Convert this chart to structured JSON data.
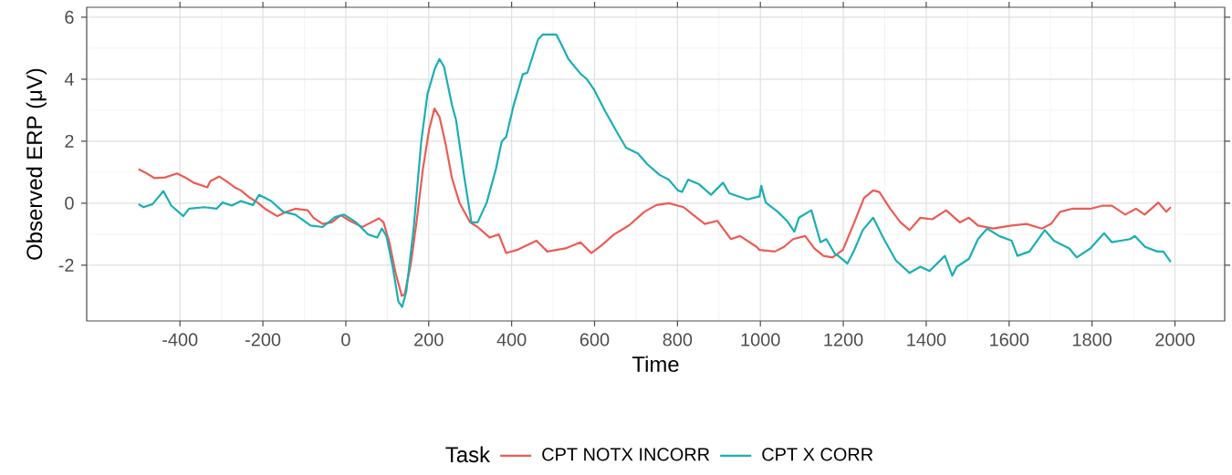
{
  "chart_data": {
    "type": "line",
    "xlabel": "Time",
    "ylabel": "Observed ERP (μV)",
    "legend_title": "Task",
    "xlim": [
      -625,
      2120
    ],
    "ylim": [
      -3.8,
      6.32
    ],
    "xticks": [
      -400,
      -200,
      0,
      200,
      400,
      600,
      800,
      1000,
      1200,
      1400,
      1600,
      1800,
      2000
    ],
    "yticks": [
      -2,
      0,
      2,
      4,
      6
    ],
    "grid": true,
    "legend": "bottom",
    "marker": "none",
    "line_style": "solid",
    "series": [
      {
        "name": "CPT NOTX INCORR",
        "color": "#ee5a55",
        "x": [
          -500,
          -484,
          -462,
          -436,
          -407,
          -385,
          -367,
          -334,
          -327,
          -305,
          -283,
          -268,
          -253,
          -231,
          -213,
          -195,
          -165,
          -143,
          -122,
          -92,
          -78,
          -56,
          -34,
          -12,
          10,
          40,
          54,
          80,
          91,
          105,
          120,
          135,
          142,
          157,
          171,
          186,
          201,
          214,
          226,
          241,
          256,
          274,
          288,
          300,
          318,
          347,
          369,
          387,
          413,
          460,
          486,
          530,
          566,
          592,
          617,
          647,
          683,
          720,
          749,
          779,
          815,
          837,
          866,
          896,
          929,
          951,
          991,
          998,
          1035,
          1057,
          1079,
          1108,
          1130,
          1152,
          1174,
          1199,
          1225,
          1250,
          1272,
          1287,
          1313,
          1338,
          1360,
          1386,
          1415,
          1448,
          1481,
          1503,
          1525,
          1561,
          1606,
          1642,
          1679,
          1701,
          1723,
          1752,
          1796,
          1826,
          1848,
          1880,
          1906,
          1927,
          1960,
          1979,
          1990
        ],
        "values": [
          1.1,
          0.99,
          0.81,
          0.83,
          0.96,
          0.81,
          0.66,
          0.51,
          0.71,
          0.86,
          0.66,
          0.51,
          0.41,
          0.17,
          0.02,
          -0.18,
          -0.42,
          -0.28,
          -0.18,
          -0.23,
          -0.47,
          -0.67,
          -0.62,
          -0.39,
          -0.57,
          -0.77,
          -0.67,
          -0.49,
          -0.62,
          -1.26,
          -2.25,
          -2.99,
          -2.94,
          -1.95,
          -0.57,
          1.1,
          2.38,
          3.05,
          2.78,
          1.89,
          0.81,
          0.02,
          -0.33,
          -0.62,
          -0.77,
          -1.11,
          -1.01,
          -1.61,
          -1.51,
          -1.21,
          -1.56,
          -1.46,
          -1.26,
          -1.61,
          -1.36,
          -1.01,
          -0.72,
          -0.28,
          -0.06,
          0.0,
          -0.13,
          -0.37,
          -0.67,
          -0.57,
          -1.16,
          -1.06,
          -1.41,
          -1.51,
          -1.56,
          -1.41,
          -1.16,
          -1.06,
          -1.46,
          -1.7,
          -1.75,
          -1.51,
          -0.67,
          0.17,
          0.41,
          0.36,
          -0.18,
          -0.62,
          -0.87,
          -0.47,
          -0.52,
          -0.23,
          -0.62,
          -0.47,
          -0.72,
          -0.82,
          -0.72,
          -0.67,
          -0.82,
          -0.67,
          -0.28,
          -0.18,
          -0.18,
          -0.08,
          -0.08,
          -0.37,
          -0.18,
          -0.37,
          0.02,
          -0.28,
          -0.13
        ]
      },
      {
        "name": "CPT X CORR",
        "color": "#1aafb3",
        "x": [
          -500,
          -488,
          -466,
          -440,
          -421,
          -392,
          -378,
          -341,
          -312,
          -297,
          -275,
          -253,
          -224,
          -209,
          -180,
          -151,
          -122,
          -85,
          -56,
          -26,
          -4,
          25,
          54,
          76,
          87,
          98,
          113,
          127,
          136,
          146,
          164,
          182,
          197,
          215,
          226,
          237,
          256,
          266,
          285,
          303,
          318,
          340,
          362,
          376,
          387,
          405,
          427,
          438,
          464,
          475,
          508,
          523,
          537,
          567,
          581,
          599,
          625,
          654,
          676,
          705,
          727,
          757,
          779,
          801,
          811,
          826,
          852,
          881,
          910,
          925,
          969,
          998,
          1002,
          1013,
          1042,
          1064,
          1082,
          1093,
          1123,
          1145,
          1159,
          1181,
          1188,
          1210,
          1225,
          1247,
          1272,
          1298,
          1327,
          1360,
          1386,
          1408,
          1445,
          1463,
          1474,
          1503,
          1525,
          1547,
          1576,
          1606,
          1620,
          1649,
          1686,
          1708,
          1745,
          1763,
          1796,
          1829,
          1848,
          1892,
          1903,
          1928,
          1957,
          1972,
          1990
        ],
        "values": [
          -0.03,
          -0.13,
          -0.03,
          0.39,
          -0.08,
          -0.42,
          -0.18,
          -0.13,
          -0.18,
          0.02,
          -0.08,
          0.07,
          -0.06,
          0.27,
          0.07,
          -0.28,
          -0.37,
          -0.72,
          -0.77,
          -0.45,
          -0.37,
          -0.62,
          -1.01,
          -1.11,
          -0.82,
          -1.06,
          -2.05,
          -3.18,
          -3.35,
          -2.84,
          -0.77,
          1.99,
          3.52,
          4.35,
          4.65,
          4.4,
          3.17,
          2.68,
          0.91,
          -0.62,
          -0.62,
          0.02,
          1.1,
          1.99,
          2.14,
          3.17,
          4.16,
          4.21,
          5.29,
          5.44,
          5.44,
          5.04,
          4.65,
          4.16,
          4.01,
          3.66,
          2.98,
          2.29,
          1.79,
          1.6,
          1.26,
          0.91,
          0.76,
          0.41,
          0.36,
          0.76,
          0.61,
          0.27,
          0.66,
          0.32,
          0.12,
          0.22,
          0.56,
          0.02,
          -0.28,
          -0.57,
          -0.92,
          -0.47,
          -0.23,
          -1.26,
          -1.16,
          -1.66,
          -1.7,
          -1.95,
          -1.56,
          -0.87,
          -0.47,
          -1.16,
          -1.85,
          -2.25,
          -2.05,
          -2.19,
          -1.7,
          -2.34,
          -2.05,
          -1.8,
          -1.16,
          -0.82,
          -1.06,
          -1.21,
          -1.7,
          -1.56,
          -0.87,
          -1.21,
          -1.46,
          -1.75,
          -1.46,
          -0.97,
          -1.26,
          -1.16,
          -1.06,
          -1.41,
          -1.56,
          -1.56,
          -1.9
        ]
      }
    ]
  }
}
